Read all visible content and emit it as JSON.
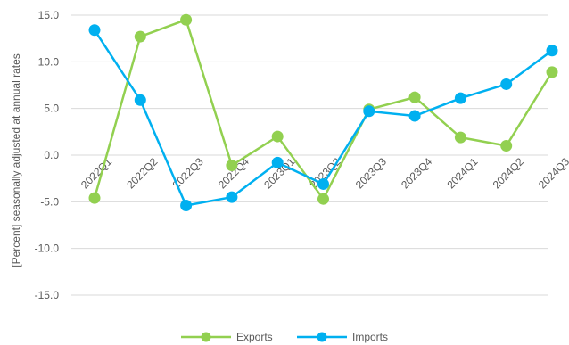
{
  "chart_data": {
    "type": "line",
    "title": "",
    "ylabel": "[Percent] seasonally adjusted at annual rates",
    "xlabel": "",
    "ylim": [
      -15,
      15
    ],
    "yticks": [
      15,
      10,
      5,
      0,
      -5,
      -10,
      -15
    ],
    "ytick_labels": [
      "15.0",
      "10.0",
      "5.0",
      "0.0",
      "-5.0",
      "-10.0",
      "-15.0"
    ],
    "categories": [
      "2022Q1",
      "2022Q2",
      "2022Q3",
      "2022Q4",
      "2023Q1",
      "2023Q2",
      "2023Q3",
      "2023Q4",
      "2024Q1",
      "2024Q2",
      "2024Q3"
    ],
    "grid": true,
    "legend_position": "bottom",
    "series": [
      {
        "name": "Exports",
        "color": "#92D050",
        "values": [
          -4.6,
          12.7,
          14.5,
          -1.1,
          2.0,
          -4.7,
          4.9,
          6.2,
          1.9,
          1.0,
          8.9
        ]
      },
      {
        "name": "Imports",
        "color": "#00B0F0",
        "values": [
          13.4,
          5.9,
          -5.4,
          -4.5,
          -0.8,
          -3.1,
          4.7,
          4.2,
          6.1,
          7.6,
          11.2
        ]
      }
    ]
  }
}
